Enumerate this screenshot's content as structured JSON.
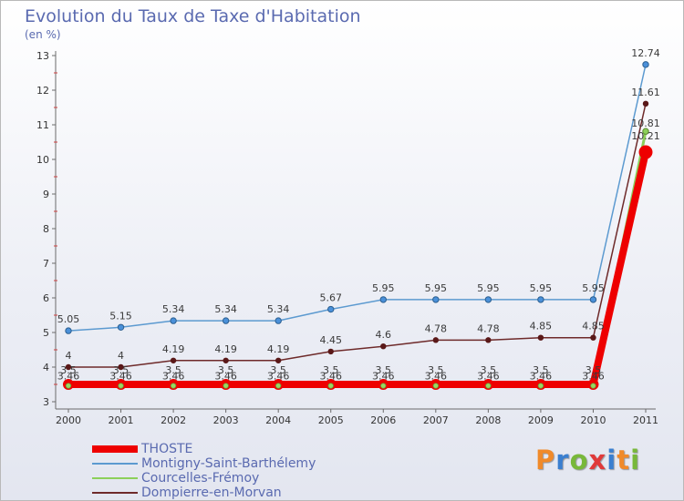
{
  "title": "Evolution du Taux de Taxe d'Habitation",
  "subtitle": "(en %)",
  "brand": {
    "letters": [
      "P",
      "r",
      "o",
      "x",
      "i",
      "t",
      "i"
    ],
    "colors": [
      "#f08a2a",
      "#3a7fd0",
      "#78b83a",
      "#e03a3a",
      "#3a7fd0",
      "#f08a2a",
      "#78b83a"
    ]
  },
  "chart_data": {
    "type": "line",
    "title": "Evolution du Taux de Taxe d'Habitation",
    "ylabel": "(en %)",
    "xlabel": "",
    "x": [
      "2000",
      "2001",
      "2002",
      "2003",
      "2004",
      "2005",
      "2006",
      "2007",
      "2008",
      "2009",
      "2010",
      "2011"
    ],
    "yticks": [
      3,
      4,
      5,
      6,
      7,
      8,
      9,
      10,
      11,
      12,
      13
    ],
    "ylim": [
      3,
      13
    ],
    "grid": false,
    "legend_position": "bottom-left",
    "series": [
      {
        "name": "THOSTE",
        "color": "#ee0000",
        "values": [
          3.5,
          3.5,
          3.5,
          3.5,
          3.5,
          3.5,
          3.5,
          3.5,
          3.5,
          3.5,
          3.5,
          10.21
        ],
        "labels": [
          "3.5",
          "3.5",
          "3.5",
          "3.5",
          "3.5",
          "3.5",
          "3.5",
          "3.5",
          "3.5",
          "3.5",
          "3.5",
          "10.21"
        ],
        "show_labels": false
      },
      {
        "name": "Montigny-Saint-Barthélemy",
        "color": "#5c9ad0",
        "values": [
          5.05,
          5.15,
          5.34,
          5.34,
          5.34,
          5.67,
          5.95,
          5.95,
          5.95,
          5.95,
          5.95,
          12.74
        ],
        "labels": [
          "5.05",
          "5.15",
          "5.34",
          "5.34",
          "5.34",
          "5.67",
          "5.95",
          "5.95",
          "5.95",
          "5.95",
          "5.95",
          "12.74"
        ],
        "show_labels": true
      },
      {
        "name": "Courcelles-Frémoy",
        "color": "#8cd05a",
        "values": [
          3.46,
          3.46,
          3.46,
          3.46,
          3.46,
          3.46,
          3.46,
          3.46,
          3.46,
          3.46,
          3.46,
          10.81
        ],
        "labels": [
          "3.46",
          "3.46",
          "3.46",
          "3.46",
          "3.46",
          "3.46",
          "3.46",
          "3.46",
          "3.46",
          "3.46",
          "3.46",
          "10.81"
        ],
        "show_labels": true
      },
      {
        "name": "Dompierre-en-Morvan",
        "color": "#6e2a2a",
        "values": [
          4,
          4,
          4.19,
          4.19,
          4.19,
          4.45,
          4.6,
          4.78,
          4.78,
          4.85,
          4.85,
          11.61
        ],
        "labels": [
          "4",
          "4",
          "4.19",
          "4.19",
          "4.19",
          "4.45",
          "4.6",
          "4.78",
          "4.78",
          "4.85",
          "4.85",
          "11.61"
        ],
        "show_labels": true
      }
    ],
    "overlay_labels": [
      "3.5",
      "3.5",
      "3.5",
      "3.5",
      "3.5",
      "3.5",
      "3.5",
      "3.5",
      "3.5",
      "3.5",
      "3.5",
      "10.21"
    ]
  }
}
